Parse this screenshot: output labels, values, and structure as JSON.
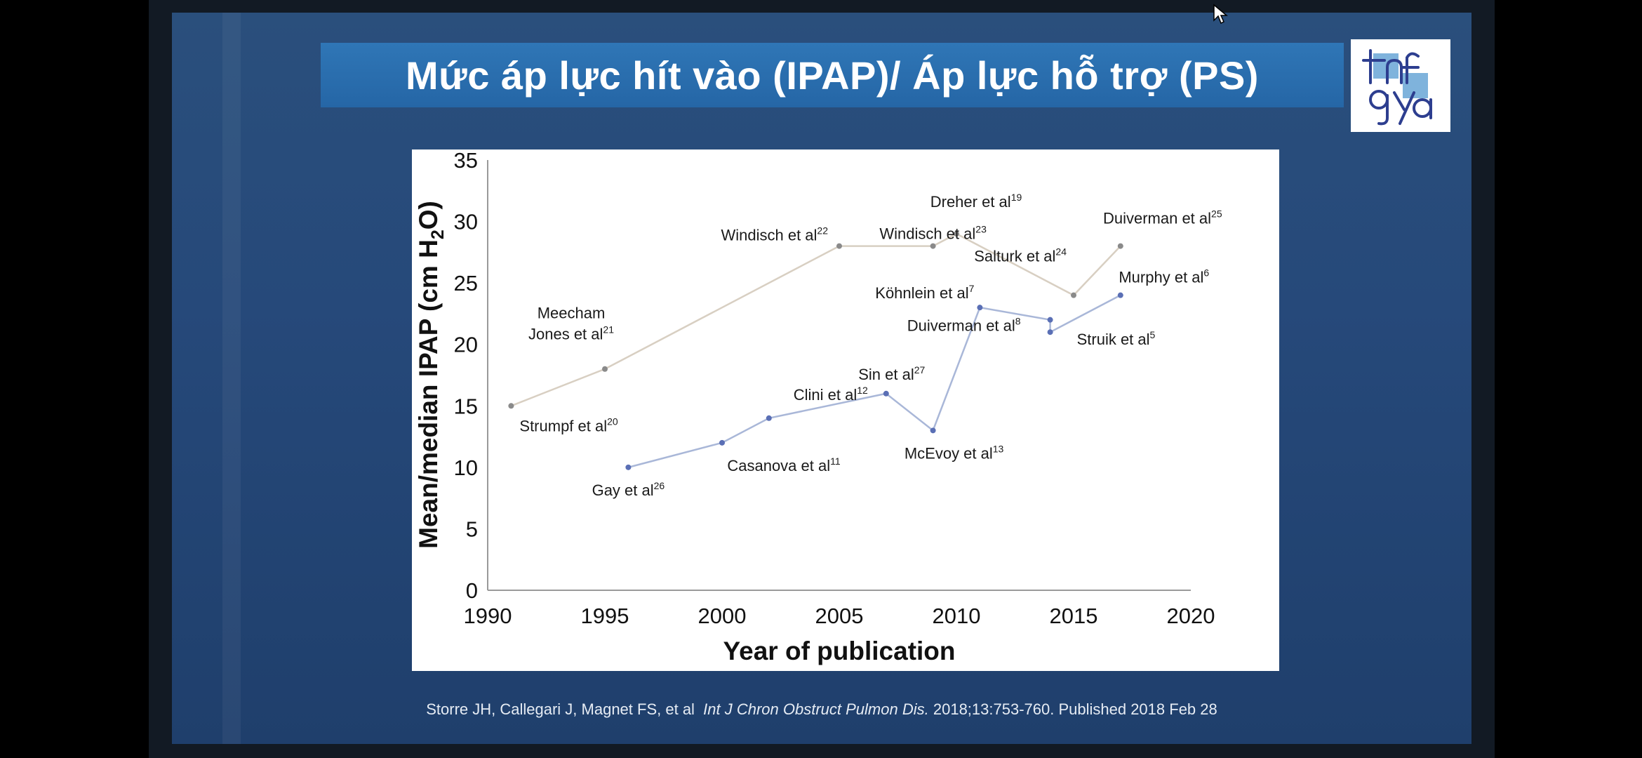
{
  "slide": {
    "title": "Mức áp lực hít vào (IPAP)/ Áp lực hỗ trợ (PS)",
    "citation_authors": "Storre JH, Callegari J, Magnet FS, et al",
    "citation_journal": "Int J Chron Obstruct Pulmon Dis.",
    "citation_details": "2018;13:753-760. Published 2018 Feb 28"
  },
  "colors": {
    "upper_series": "#d8cfc2",
    "upper_marker": "#8a8a8a",
    "lower_series": "#a9b7d8",
    "lower_marker": "#5a6fb5",
    "slide_background": "#26497a",
    "title_bar": "#2a6dae"
  },
  "chart_data": {
    "type": "line",
    "title": "",
    "xlabel": "Year of publication",
    "ylabel_parts": {
      "before": "Mean/median IPAP (cm H",
      "sub": "2",
      "after": "O)"
    },
    "xlim": [
      1990,
      2020
    ],
    "ylim": [
      0,
      35
    ],
    "xticks": [
      1990,
      1995,
      2000,
      2005,
      2010,
      2015,
      2020
    ],
    "yticks": [
      0,
      5,
      10,
      15,
      20,
      25,
      30,
      35
    ],
    "grid": false,
    "legend": "none",
    "series": [
      {
        "color_key": "upper",
        "points": [
          {
            "x": 1991,
            "y": 15,
            "label": "Strumpf et al",
            "ref": "20"
          },
          {
            "x": 1995,
            "y": 18,
            "label": "Meecham|Jones et al",
            "ref": "21"
          },
          {
            "x": 2005,
            "y": 28,
            "label": "Windisch et al",
            "ref": "22"
          },
          {
            "x": 2009,
            "y": 28,
            "label": "Windisch et al",
            "ref": "23"
          },
          {
            "x": 2010,
            "y": 29,
            "label": "Dreher et al",
            "ref": "19"
          },
          {
            "x": 2015,
            "y": 24,
            "label": "Salturk et al",
            "ref": "24"
          },
          {
            "x": 2017,
            "y": 28,
            "label": "Duiverman et al",
            "ref": "25"
          }
        ]
      },
      {
        "color_key": "lower",
        "points": [
          {
            "x": 1996,
            "y": 10,
            "label": "Gay et al",
            "ref": "26"
          },
          {
            "x": 2000,
            "y": 12,
            "label": "Casanova et al",
            "ref": "11"
          },
          {
            "x": 2002,
            "y": 14,
            "label": "Clini et al",
            "ref": "12"
          },
          {
            "x": 2007,
            "y": 16,
            "label": "Sin et al",
            "ref": "27"
          },
          {
            "x": 2009,
            "y": 13,
            "label": "McEvoy et al",
            "ref": "13"
          },
          {
            "x": 2011,
            "y": 23,
            "label": "Köhnlein et al",
            "ref": "7"
          },
          {
            "x": 2014,
            "y": 22,
            "label": "Duiverman et al",
            "ref": "8"
          },
          {
            "x": 2014,
            "y": 21,
            "label": "Struik et al",
            "ref": "5"
          },
          {
            "x": 2017,
            "y": 24,
            "label": "Murphy et al",
            "ref": "6"
          }
        ]
      }
    ]
  }
}
